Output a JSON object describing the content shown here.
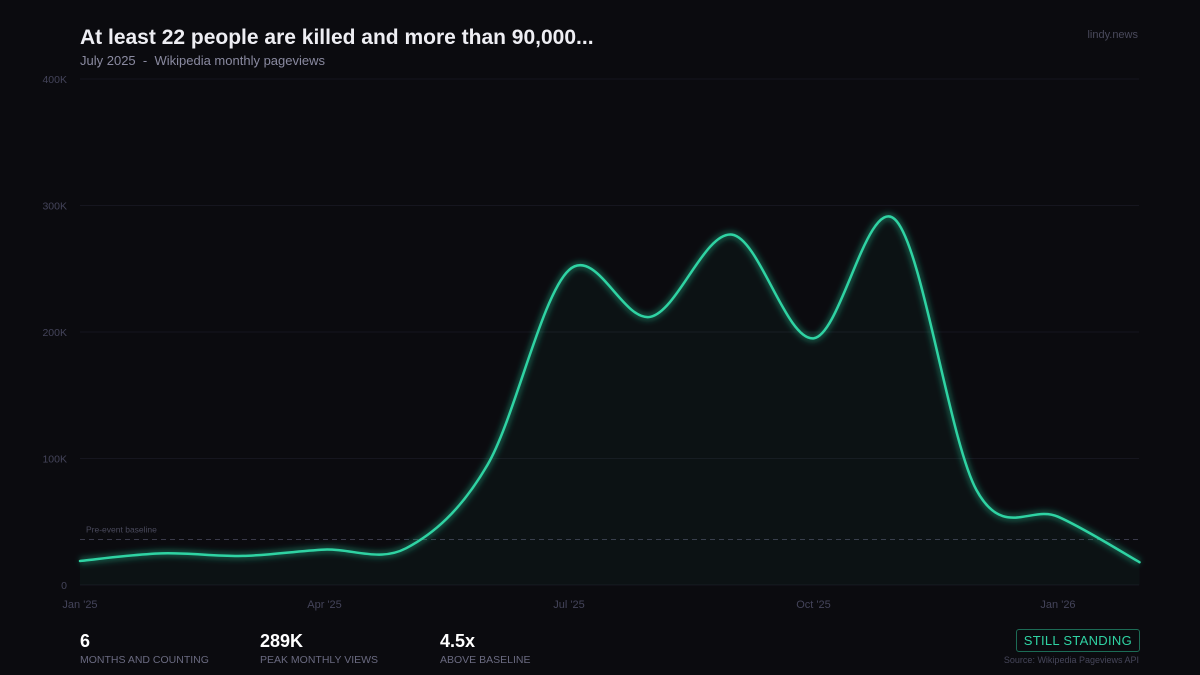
{
  "header": {
    "title": "At least 22 people are killed and more than 90,000...",
    "subtitle_date": "July 2025",
    "subtitle_sep": "-",
    "subtitle_desc": "Wikipedia monthly pageviews",
    "brand": "lindy.news"
  },
  "chart_data": {
    "type": "area",
    "title": "At least 22 people are killed and more than 90,000...",
    "ylim": [
      0,
      400000
    ],
    "yticks": [
      {
        "v": 0,
        "label": "0"
      },
      {
        "v": 100000,
        "label": "100K"
      },
      {
        "v": 200000,
        "label": "200K"
      },
      {
        "v": 300000,
        "label": "300K"
      },
      {
        "v": 400000,
        "label": "400K"
      }
    ],
    "xticks": [
      {
        "i": 0,
        "label": "Jan '25"
      },
      {
        "i": 3,
        "label": "Apr '25"
      },
      {
        "i": 6,
        "label": "Jul '25"
      },
      {
        "i": 9,
        "label": "Oct '25"
      },
      {
        "i": 12,
        "label": "Jan '26"
      }
    ],
    "x": [
      "2025-01",
      "2025-02",
      "2025-03",
      "2025-04",
      "2025-05",
      "2025-06",
      "2025-07",
      "2025-08",
      "2025-09",
      "2025-10",
      "2025-11",
      "2025-12",
      "2026-01",
      "2026-02"
    ],
    "values": [
      19000,
      25000,
      23000,
      28000,
      29000,
      95000,
      249000,
      212000,
      277000,
      195000,
      289000,
      75000,
      54000,
      18000
    ],
    "baseline": {
      "value": 36000,
      "label": "Pre-event baseline"
    },
    "grid": true,
    "color": "#2fd3a3"
  },
  "stats": [
    {
      "value": "6",
      "label": "MONTHS AND COUNTING"
    },
    {
      "value": "289K",
      "label": "PEAK MONTHLY VIEWS"
    },
    {
      "value": "4.5x",
      "label": "ABOVE BASELINE"
    }
  ],
  "badge": "STILL STANDING",
  "source": "Source: Wikipedia Pageviews API"
}
